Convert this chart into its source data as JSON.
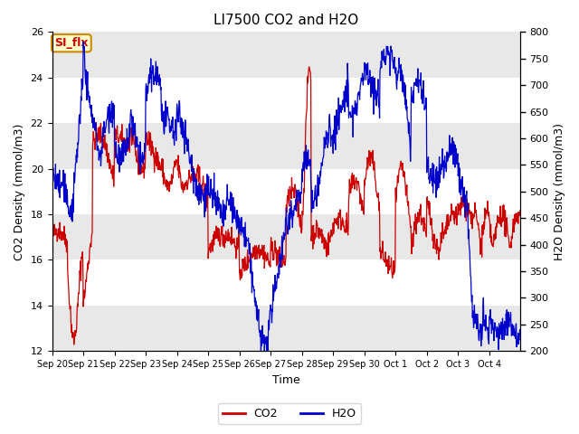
{
  "title": "LI7500 CO2 and H2O",
  "xlabel": "Time",
  "ylabel_left": "CO2 Density (mmol/m3)",
  "ylabel_right": "H2O Density (mmol/m3)",
  "ylim_left": [
    12,
    26
  ],
  "ylim_right": [
    200,
    800
  ],
  "yticks_left": [
    12,
    14,
    16,
    18,
    20,
    22,
    24,
    26
  ],
  "yticks_right": [
    200,
    250,
    300,
    350,
    400,
    450,
    500,
    550,
    600,
    650,
    700,
    750,
    800
  ],
  "co2_color": "#cc0000",
  "h2o_color": "#0000cc",
  "legend_co2": "CO2",
  "legend_h2o": "H2O",
  "tag_text": "SI_flx",
  "tag_bg": "#ffffcc",
  "tag_border": "#cc8800",
  "tag_text_color": "#cc0000",
  "background_color": "#ffffff",
  "band_color": "#e8e8e8",
  "n_points": 1200
}
